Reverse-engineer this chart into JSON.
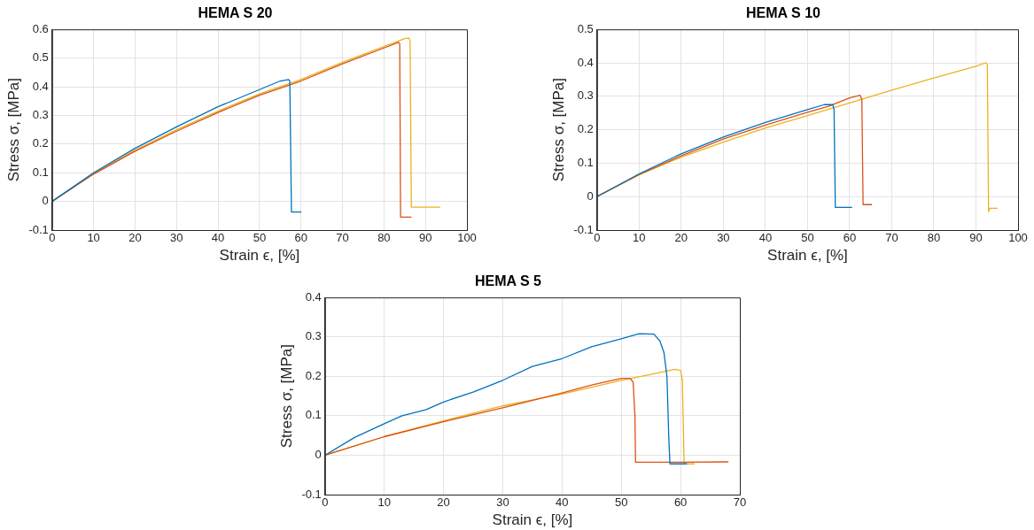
{
  "chart_data": [
    {
      "type": "line",
      "title": "HEMA S 20",
      "xlabel": "Strain ϵ, [%]",
      "ylabel": "Stress σ, [MPa]",
      "xlim": [
        0,
        100
      ],
      "xticks": [
        0,
        10,
        20,
        30,
        40,
        50,
        60,
        70,
        80,
        90,
        100
      ],
      "ylim": [
        -0.1,
        0.6
      ],
      "yticks": [
        -0.1,
        0,
        0.1,
        0.2,
        0.3,
        0.4,
        0.5,
        0.6
      ],
      "grid": true,
      "legend": false,
      "marker": "none",
      "line_style": "solid",
      "series": [
        {
          "color": "#0072bd",
          "x": [
            0,
            10,
            20,
            30,
            40,
            50,
            55,
            57,
            57.3,
            57.7,
            60
          ],
          "values": [
            0,
            0.1,
            0.185,
            0.26,
            0.33,
            0.39,
            0.42,
            0.425,
            0.42,
            -0.037,
            -0.037
          ]
        },
        {
          "color": "#d95319",
          "x": [
            0,
            10,
            20,
            30,
            40,
            50,
            60,
            70,
            80,
            83.5,
            83.8,
            84,
            86.5
          ],
          "values": [
            0,
            0.095,
            0.175,
            0.245,
            0.31,
            0.37,
            0.42,
            0.48,
            0.535,
            0.555,
            0.55,
            -0.055,
            -0.055
          ]
        },
        {
          "color": "#edb120",
          "x": [
            0,
            10,
            20,
            30,
            40,
            50,
            60,
            70,
            80,
            85,
            86,
            86.3,
            86.6,
            93.5
          ],
          "values": [
            0,
            0.097,
            0.178,
            0.25,
            0.315,
            0.375,
            0.425,
            0.485,
            0.54,
            0.568,
            0.57,
            0.56,
            -0.02,
            -0.02
          ]
        }
      ]
    },
    {
      "type": "line",
      "title": "HEMA S 10",
      "xlabel": "Strain ϵ, [%]",
      "ylabel": "Stress σ, [MPa]",
      "xlim": [
        0,
        100
      ],
      "xticks": [
        0,
        10,
        20,
        30,
        40,
        50,
        60,
        70,
        80,
        90,
        100
      ],
      "ylim": [
        -0.1,
        0.5
      ],
      "yticks": [
        -0.1,
        0,
        0.1,
        0.2,
        0.3,
        0.4,
        0.5
      ],
      "grid": true,
      "legend": false,
      "marker": "none",
      "line_style": "solid",
      "series": [
        {
          "color": "#0072bd",
          "x": [
            0,
            10,
            20,
            30,
            40,
            50,
            54,
            56,
            56.3,
            56.6,
            60.5
          ],
          "values": [
            0,
            0.068,
            0.128,
            0.178,
            0.222,
            0.26,
            0.275,
            0.275,
            0.26,
            -0.032,
            -0.032
          ]
        },
        {
          "color": "#d95319",
          "x": [
            0,
            10,
            20,
            30,
            40,
            50,
            55,
            60,
            62.5,
            62.9,
            63.2,
            65.2
          ],
          "values": [
            0,
            0.066,
            0.122,
            0.172,
            0.214,
            0.252,
            0.27,
            0.295,
            0.303,
            0.29,
            -0.024,
            -0.024
          ]
        },
        {
          "color": "#edb120",
          "x": [
            0,
            10,
            20,
            30,
            40,
            50,
            60,
            70,
            80,
            90,
            92.3,
            92.7,
            93,
            93.3,
            95
          ],
          "values": [
            0,
            0.065,
            0.118,
            0.163,
            0.205,
            0.242,
            0.28,
            0.318,
            0.355,
            0.39,
            0.4,
            0.395,
            -0.045,
            -0.035,
            -0.035
          ]
        }
      ]
    },
    {
      "type": "line",
      "title": "HEMA S 5",
      "xlabel": "Strain ϵ, [%]",
      "ylabel": "Stress σ, [MPa]",
      "xlim": [
        0,
        70
      ],
      "xticks": [
        0,
        10,
        20,
        30,
        40,
        50,
        60,
        70
      ],
      "ylim": [
        -0.1,
        0.4
      ],
      "yticks": [
        -0.1,
        0,
        0.1,
        0.2,
        0.3,
        0.4
      ],
      "grid": true,
      "legend": false,
      "marker": "none",
      "line_style": "solid",
      "series": [
        {
          "color": "#0072bd",
          "x": [
            0,
            5,
            10,
            13,
            17,
            20,
            25,
            30,
            35,
            40,
            45,
            50,
            53,
            55.5,
            56.5,
            57.2,
            57.7,
            58,
            58.2,
            61
          ],
          "values": [
            0,
            0.045,
            0.08,
            0.1,
            0.115,
            0.135,
            0.16,
            0.19,
            0.225,
            0.245,
            0.275,
            0.295,
            0.308,
            0.307,
            0.29,
            0.26,
            0.2,
            0.05,
            -0.022,
            -0.022
          ]
        },
        {
          "color": "#d95319",
          "x": [
            0,
            10,
            20,
            30,
            40,
            45,
            50,
            51.5,
            52,
            52.3,
            52.4,
            60,
            68
          ],
          "values": [
            0,
            0.047,
            0.085,
            0.12,
            0.158,
            0.178,
            0.195,
            0.195,
            0.185,
            0.1,
            -0.018,
            -0.018,
            -0.017
          ]
        },
        {
          "color": "#edb120",
          "x": [
            0,
            10,
            20,
            30,
            40,
            50,
            55,
            59,
            60,
            60.3,
            60.6,
            62.3
          ],
          "values": [
            0,
            0.047,
            0.087,
            0.125,
            0.155,
            0.19,
            0.205,
            0.218,
            0.215,
            0.19,
            -0.022,
            -0.022
          ]
        }
      ]
    }
  ]
}
